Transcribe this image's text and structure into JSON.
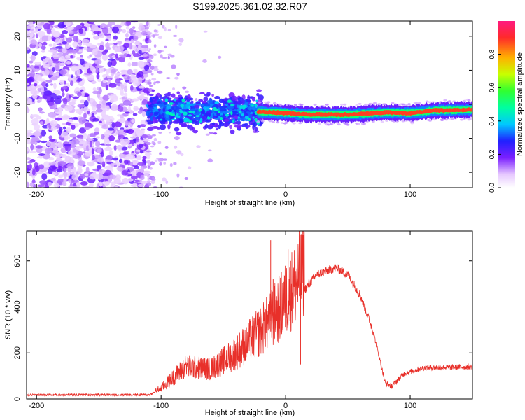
{
  "figure_title": "S199.2025.361.02.32.R07",
  "colors": {
    "snr_line": "#e8302a",
    "ridge": "#ff2020",
    "background": "#ffffff"
  },
  "chart_data": [
    {
      "type": "heatmap",
      "name": "spectrogram",
      "xlabel": "Height of straight line (km)",
      "ylabel": "Frequency (Hz)",
      "xlim": [
        -208,
        150
      ],
      "ylim": [
        -24.5,
        24.5
      ],
      "x_ticks": [
        -200,
        -100,
        0,
        100
      ],
      "y_ticks": [
        -20,
        -10,
        0,
        10,
        20
      ],
      "colorbar": {
        "label": "Normalized spectral amplitude",
        "range": [
          0,
          1
        ],
        "ticks": [
          "0.0",
          "0.2",
          "0.4",
          "0.6",
          "0.8"
        ],
        "tick_values": [
          0.0,
          0.2,
          0.4,
          0.6,
          0.8
        ]
      },
      "regions": [
        {
          "x_range": [
            -208,
            -110
          ],
          "description_level": 0.18,
          "freq_spread": 24
        },
        {
          "x_range": [
            -110,
            -20
          ],
          "description_level": 0.3,
          "freq_spread": 6
        },
        {
          "x_range": [
            -20,
            150
          ],
          "description_level": 1.0,
          "freq_spread": 1
        }
      ],
      "ridge": [
        {
          "x": -20,
          "f": -2.2
        },
        {
          "x": 0,
          "f": -2.6
        },
        {
          "x": 20,
          "f": -3.0
        },
        {
          "x": 50,
          "f": -3.0
        },
        {
          "x": 80,
          "f": -2.4
        },
        {
          "x": 100,
          "f": -2.6
        },
        {
          "x": 120,
          "f": -1.8
        },
        {
          "x": 150,
          "f": -1.6
        }
      ]
    },
    {
      "type": "line",
      "name": "snr",
      "xlabel": "Height of straight line (km)",
      "ylabel": "SNR (10 * v/v)",
      "xlim": [
        -208,
        150
      ],
      "ylim": [
        0,
        730
      ],
      "x_ticks": [
        -200,
        -100,
        0,
        100
      ],
      "y_ticks": [
        0,
        200,
        400,
        600
      ],
      "envelope": [
        {
          "x": -208,
          "y": 18
        },
        {
          "x": -110,
          "y": 18
        },
        {
          "x": -100,
          "y": 40
        },
        {
          "x": -80,
          "y": 120
        },
        {
          "x": -60,
          "y": 110
        },
        {
          "x": -40,
          "y": 170
        },
        {
          "x": -20,
          "y": 250
        },
        {
          "x": -5,
          "y": 330
        },
        {
          "x": 10,
          "y": 440
        },
        {
          "x": 25,
          "y": 540
        },
        {
          "x": 40,
          "y": 570
        },
        {
          "x": 50,
          "y": 540
        },
        {
          "x": 60,
          "y": 450
        },
        {
          "x": 70,
          "y": 300
        },
        {
          "x": 80,
          "y": 70
        },
        {
          "x": 85,
          "y": 55
        },
        {
          "x": 95,
          "y": 110
        },
        {
          "x": 110,
          "y": 135
        },
        {
          "x": 150,
          "y": 140
        }
      ],
      "spikes": [
        {
          "x": -12,
          "y": 690
        },
        {
          "x": -10,
          "y": 520
        },
        {
          "x": -6,
          "y": 360
        },
        {
          "x": 2,
          "y": 650
        },
        {
          "x": 4,
          "y": 600
        },
        {
          "x": 11,
          "y": 740
        },
        {
          "x": 12,
          "y": 150
        }
      ]
    }
  ]
}
